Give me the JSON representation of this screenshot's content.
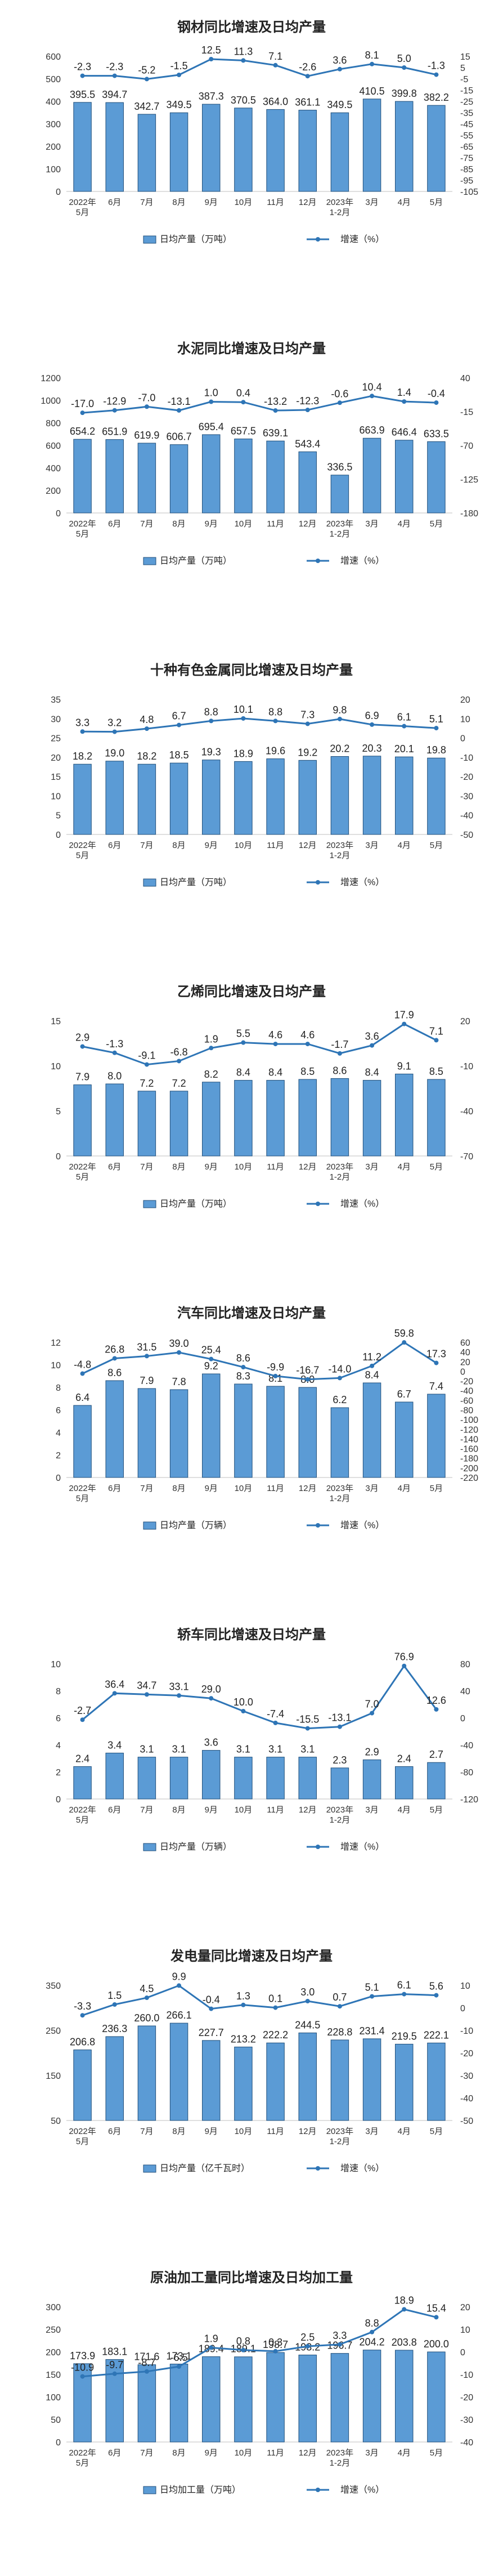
{
  "colors": {
    "bar_fill": "#5b9bd5",
    "bar_stroke": "#1f4e79",
    "line": "#2e75b6",
    "marker": "#2e75b6",
    "axis_text": "#333333",
    "title_text": "#222222",
    "grid": "#d9d9d9"
  },
  "chart_data": [
    {
      "type": "bar+line",
      "title": "钢材同比增速及日均产量",
      "categories": [
        "2022年\n5月",
        "6月",
        "7月",
        "8月",
        "9月",
        "10月",
        "11月",
        "12月",
        "2023年\n1-2月",
        "3月",
        "4月",
        "5月"
      ],
      "series": [
        {
          "name": "日均产量（万吨）",
          "axis": "left",
          "kind": "bar",
          "values": [
            395.5,
            394.7,
            342.7,
            349.5,
            387.3,
            370.5,
            364.0,
            361.1,
            349.5,
            410.5,
            399.8,
            382.2
          ]
        },
        {
          "name": "增速（%）",
          "axis": "right",
          "kind": "line",
          "values": [
            -2.3,
            -2.3,
            -5.2,
            -1.5,
            12.5,
            11.3,
            7.1,
            -2.6,
            3.6,
            8.1,
            5.0,
            -1.3
          ]
        }
      ],
      "left_axis": {
        "min": 0,
        "max": 600,
        "ticks": [
          0,
          100,
          200,
          300,
          400,
          500,
          600
        ]
      },
      "right_axis": {
        "min": -105,
        "max": 15,
        "ticks": [
          15,
          5,
          -5,
          -15,
          -25,
          -35,
          -45,
          -55,
          -65,
          -75,
          -85,
          -95,
          -105
        ]
      }
    },
    {
      "type": "bar+line",
      "title": "水泥同比增速及日均产量",
      "categories": [
        "2022年\n5月",
        "6月",
        "7月",
        "8月",
        "9月",
        "10月",
        "11月",
        "12月",
        "2023年\n1-2月",
        "3月",
        "4月",
        "5月"
      ],
      "series": [
        {
          "name": "日均产量（万吨）",
          "axis": "left",
          "kind": "bar",
          "values": [
            654.2,
            651.9,
            619.9,
            606.7,
            695.4,
            657.5,
            639.1,
            543.4,
            336.5,
            663.9,
            646.4,
            633.5
          ]
        },
        {
          "name": "增速（%）",
          "axis": "right",
          "kind": "line",
          "values": [
            -17.0,
            -12.9,
            -7.0,
            -13.1,
            1.0,
            0.4,
            -13.2,
            -12.3,
            -0.6,
            10.4,
            1.4,
            -0.4
          ]
        }
      ],
      "left_axis": {
        "min": 0,
        "max": 1200,
        "ticks": [
          0,
          200,
          400,
          600,
          800,
          1000,
          1200
        ]
      },
      "right_axis": {
        "min": -180,
        "max": 40,
        "ticks": [
          40,
          -15,
          -70,
          -125,
          -180
        ]
      }
    },
    {
      "type": "bar+line",
      "title": "十种有色金属同比增速及日均产量",
      "categories": [
        "2022年\n5月",
        "6月",
        "7月",
        "8月",
        "9月",
        "10月",
        "11月",
        "12月",
        "2023年\n1-2月",
        "3月",
        "4月",
        "5月"
      ],
      "series": [
        {
          "name": "日均产量（万吨）",
          "axis": "left",
          "kind": "bar",
          "values": [
            18.2,
            19.0,
            18.2,
            18.5,
            19.3,
            18.9,
            19.6,
            19.2,
            20.2,
            20.3,
            20.1,
            19.8
          ]
        },
        {
          "name": "增速（%）",
          "axis": "right",
          "kind": "line",
          "values": [
            3.3,
            3.2,
            4.8,
            6.7,
            8.8,
            10.1,
            8.8,
            7.3,
            9.8,
            6.9,
            6.1,
            5.1
          ]
        }
      ],
      "left_axis": {
        "min": 0,
        "max": 35,
        "ticks": [
          0,
          5,
          10,
          15,
          20,
          25,
          30,
          35
        ]
      },
      "right_axis": {
        "min": -50,
        "max": 20,
        "ticks": [
          20,
          10,
          0,
          -10,
          -20,
          -30,
          -40,
          -50
        ]
      }
    },
    {
      "type": "bar+line",
      "title": "乙烯同比增速及日均产量",
      "categories": [
        "2022年\n5月",
        "6月",
        "7月",
        "8月",
        "9月",
        "10月",
        "11月",
        "12月",
        "2023年\n1-2月",
        "3月",
        "4月",
        "5月"
      ],
      "series": [
        {
          "name": "日均产量（万吨）",
          "axis": "left",
          "kind": "bar",
          "values": [
            7.9,
            8.0,
            7.2,
            7.2,
            8.2,
            8.4,
            8.4,
            8.5,
            8.6,
            8.4,
            9.1,
            8.5
          ]
        },
        {
          "name": "增速（%）",
          "axis": "right",
          "kind": "line",
          "values": [
            2.9,
            -1.3,
            -9.1,
            -6.8,
            1.9,
            5.5,
            4.6,
            4.6,
            -1.7,
            3.6,
            17.9,
            7.1
          ]
        }
      ],
      "left_axis": {
        "min": 0,
        "max": 15,
        "ticks": [
          0,
          5,
          10,
          15
        ]
      },
      "right_axis": {
        "min": -70,
        "max": 20,
        "ticks": [
          20,
          -10,
          -40,
          -70
        ]
      }
    },
    {
      "type": "bar+line",
      "title": "汽车同比增速及日均产量",
      "categories": [
        "2022年\n5月",
        "6月",
        "7月",
        "8月",
        "9月",
        "10月",
        "11月",
        "12月",
        "2023年\n1-2月",
        "3月",
        "4月",
        "5月"
      ],
      "series": [
        {
          "name": "日均产量（万辆）",
          "axis": "left",
          "kind": "bar",
          "values": [
            6.4,
            8.6,
            7.9,
            7.8,
            9.2,
            8.3,
            8.1,
            8.0,
            6.2,
            8.4,
            6.7,
            7.4
          ]
        },
        {
          "name": "增速（%）",
          "axis": "right",
          "kind": "line",
          "values": [
            -4.8,
            26.8,
            31.5,
            39.0,
            25.4,
            8.6,
            -9.9,
            -16.7,
            -14.0,
            11.2,
            59.8,
            17.3
          ]
        }
      ],
      "left_axis": {
        "min": 0,
        "max": 12,
        "ticks": [
          0,
          2,
          4,
          6,
          8,
          10,
          12
        ]
      },
      "right_axis": {
        "min": -220,
        "max": 60,
        "ticks": [
          60,
          40,
          20,
          0,
          -20,
          -40,
          -60,
          -80,
          -100,
          -120,
          -140,
          -160,
          -180,
          -200,
          -220
        ]
      }
    },
    {
      "type": "bar+line",
      "title": "轿车同比增速及日均产量",
      "categories": [
        "2022年\n5月",
        "6月",
        "7月",
        "8月",
        "9月",
        "10月",
        "11月",
        "12月",
        "2023年\n1-2月",
        "3月",
        "4月",
        "5月"
      ],
      "series": [
        {
          "name": "日均产量（万辆）",
          "axis": "left",
          "kind": "bar",
          "values": [
            2.4,
            3.4,
            3.1,
            3.1,
            3.6,
            3.1,
            3.1,
            3.1,
            2.3,
            2.9,
            2.4,
            2.7
          ]
        },
        {
          "name": "增速（%）",
          "axis": "right",
          "kind": "line",
          "values": [
            -2.7,
            36.4,
            34.7,
            33.1,
            29.0,
            10.0,
            -7.4,
            -15.5,
            -13.1,
            7.0,
            76.9,
            12.6
          ]
        }
      ],
      "left_axis": {
        "min": 0,
        "max": 10,
        "ticks": [
          0,
          2,
          4,
          6,
          8,
          10
        ]
      },
      "right_axis": {
        "min": -120,
        "max": 80,
        "ticks": [
          80,
          40,
          0,
          -40,
          -80,
          -120
        ]
      }
    },
    {
      "type": "bar+line",
      "title": "发电量同比增速及日均产量",
      "categories": [
        "2022年\n5月",
        "6月",
        "7月",
        "8月",
        "9月",
        "10月",
        "11月",
        "12月",
        "2023年\n1-2月",
        "3月",
        "4月",
        "5月"
      ],
      "series": [
        {
          "name": "日均产量（亿千瓦时）",
          "axis": "left",
          "kind": "bar",
          "values": [
            206.8,
            236.3,
            260.0,
            266.1,
            227.7,
            213.2,
            222.2,
            244.5,
            228.8,
            231.4,
            219.5,
            222.1
          ]
        },
        {
          "name": "增速（%）",
          "axis": "right",
          "kind": "line",
          "values": [
            -3.3,
            1.5,
            4.5,
            9.9,
            -0.4,
            1.3,
            0.1,
            3.0,
            0.7,
            5.1,
            6.1,
            5.6
          ]
        }
      ],
      "left_axis": {
        "min": 50,
        "max": 350,
        "ticks": [
          50,
          150,
          250,
          350
        ]
      },
      "right_axis": {
        "min": -50,
        "max": 10,
        "ticks": [
          10,
          0,
          -10,
          -20,
          -30,
          -40,
          -50
        ]
      }
    },
    {
      "type": "bar+line",
      "title": "原油加工量同比增速及日均加工量",
      "categories": [
        "2022年\n5月",
        "6月",
        "7月",
        "8月",
        "9月",
        "10月",
        "11月",
        "12月",
        "2023年\n1-2月",
        "3月",
        "4月",
        "5月"
      ],
      "series": [
        {
          "name": "日均加工量（万吨）",
          "axis": "left",
          "kind": "bar",
          "values": [
            173.9,
            183.1,
            171.6,
            173.1,
            189.4,
            189.1,
            198.7,
            193.2,
            196.7,
            204.2,
            203.8,
            200.0
          ]
        },
        {
          "name": "增速（%）",
          "axis": "right",
          "kind": "line",
          "values": [
            -10.9,
            -9.7,
            -8.7,
            -6.5,
            1.9,
            0.8,
            0.3,
            2.5,
            3.3,
            8.8,
            18.9,
            15.4
          ]
        }
      ],
      "left_axis": {
        "min": 0,
        "max": 300,
        "ticks": [
          0,
          50,
          100,
          150,
          200,
          250,
          300
        ]
      },
      "right_axis": {
        "min": -40,
        "max": 20,
        "ticks": [
          20,
          10,
          0,
          -10,
          -20,
          -30,
          -40
        ]
      }
    }
  ]
}
